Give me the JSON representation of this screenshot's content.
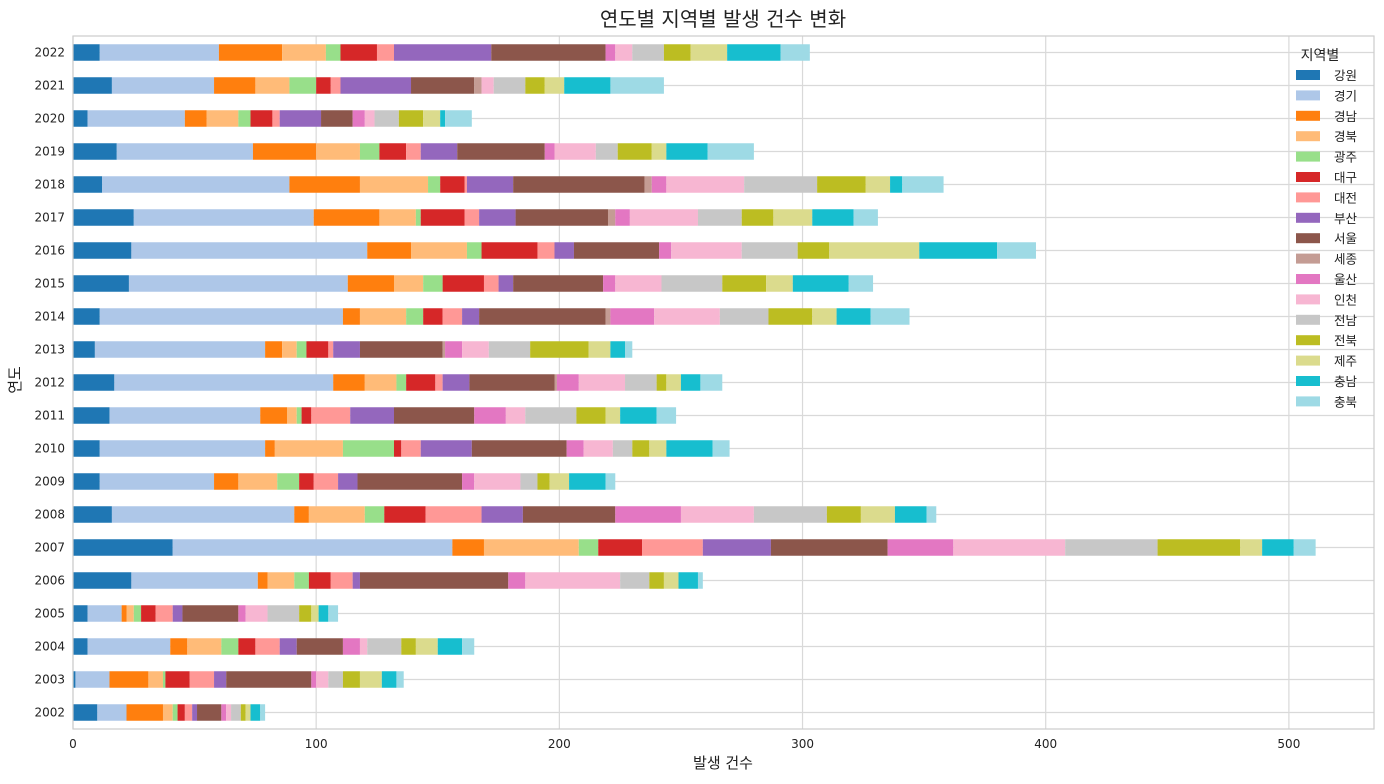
{
  "chart_data": {
    "type": "bar",
    "orientation": "horizontal",
    "stacked": true,
    "title": "연도별 지역별 발생 건수 변화",
    "xlabel": "발생 건수",
    "ylabel": "연도",
    "xlim": [
      0,
      535
    ],
    "xticks": [
      0,
      100,
      200,
      300,
      400,
      500
    ],
    "grid": true,
    "legend_title": "지역별",
    "legend_position": "top-right",
    "categories": [
      "2002",
      "2003",
      "2004",
      "2005",
      "2006",
      "2007",
      "2008",
      "2009",
      "2010",
      "2011",
      "2012",
      "2013",
      "2014",
      "2015",
      "2016",
      "2017",
      "2018",
      "2019",
      "2020",
      "2021",
      "2022"
    ],
    "series": [
      {
        "name": "강원",
        "color": "#1f77b4",
        "values": [
          10,
          1,
          6,
          6,
          24,
          41,
          16,
          11,
          11,
          15,
          17,
          9,
          11,
          23,
          24,
          25,
          12,
          18,
          6,
          16,
          11
        ]
      },
      {
        "name": "경기",
        "color": "#aec7e8",
        "values": [
          12,
          14,
          34,
          14,
          52,
          115,
          75,
          47,
          68,
          62,
          90,
          70,
          100,
          90,
          97,
          74,
          77,
          56,
          40,
          42,
          49
        ]
      },
      {
        "name": "경남",
        "color": "#ff7f0e",
        "values": [
          15,
          16,
          7,
          2,
          4,
          13,
          6,
          10,
          4,
          11,
          13,
          7,
          7,
          19,
          18,
          27,
          29,
          26,
          9,
          17,
          26
        ]
      },
      {
        "name": "경북",
        "color": "#ffbb78",
        "values": [
          4,
          6,
          14,
          3,
          11,
          39,
          23,
          16,
          28,
          4,
          13,
          6,
          19,
          12,
          23,
          15,
          28,
          18,
          13,
          14,
          18
        ]
      },
      {
        "name": "광주",
        "color": "#98df8a",
        "values": [
          2,
          1,
          7,
          3,
          6,
          8,
          8,
          9,
          21,
          2,
          4,
          4,
          7,
          8,
          6,
          2,
          5,
          8,
          5,
          11,
          6
        ]
      },
      {
        "name": "대구",
        "color": "#d62728",
        "values": [
          3,
          10,
          7,
          6,
          9,
          18,
          17,
          6,
          3,
          4,
          12,
          9,
          8,
          17,
          23,
          18,
          10,
          11,
          9,
          6,
          15
        ]
      },
      {
        "name": "대전",
        "color": "#ff9896",
        "values": [
          3,
          10,
          10,
          7,
          9,
          25,
          23,
          10,
          8,
          16,
          3,
          2,
          8,
          6,
          7,
          6,
          1,
          6,
          3,
          4,
          7
        ]
      },
      {
        "name": "부산",
        "color": "#9467bd",
        "values": [
          2,
          5,
          7,
          4,
          3,
          28,
          17,
          8,
          21,
          18,
          11,
          11,
          7,
          6,
          8,
          15,
          19,
          15,
          17,
          29,
          40
        ]
      },
      {
        "name": "서울",
        "color": "#8c564b",
        "values": [
          10,
          35,
          19,
          23,
          61,
          48,
          38,
          43,
          39,
          33,
          35,
          34,
          52,
          37,
          35,
          38,
          54,
          36,
          13,
          26,
          47
        ]
      },
      {
        "name": "세종",
        "color": "#c49c94",
        "values": [
          0,
          0,
          0,
          0,
          0,
          0,
          0,
          0,
          0,
          0,
          1,
          1,
          2,
          0,
          0,
          3,
          3,
          0,
          0,
          3,
          0
        ]
      },
      {
        "name": "울산",
        "color": "#e377c2",
        "values": [
          2,
          2,
          7,
          3,
          7,
          27,
          27,
          5,
          7,
          13,
          9,
          7,
          18,
          5,
          5,
          6,
          6,
          4,
          5,
          0,
          4
        ]
      },
      {
        "name": "인천",
        "color": "#f7b6d2",
        "values": [
          2,
          5,
          3,
          9,
          39,
          46,
          30,
          19,
          12,
          8,
          19,
          11,
          27,
          19,
          29,
          28,
          32,
          17,
          4,
          5,
          7
        ]
      },
      {
        "name": "전남",
        "color": "#c7c7c7",
        "values": [
          4,
          6,
          14,
          13,
          12,
          38,
          30,
          7,
          8,
          21,
          13,
          17,
          20,
          25,
          23,
          18,
          30,
          9,
          10,
          13,
          13
        ]
      },
      {
        "name": "전북",
        "color": "#bcbd22",
        "values": [
          2,
          7,
          6,
          5,
          6,
          34,
          14,
          5,
          7,
          12,
          4,
          24,
          18,
          18,
          13,
          13,
          20,
          14,
          10,
          8,
          11
        ]
      },
      {
        "name": "제주",
        "color": "#dbdb8d",
        "values": [
          2,
          9,
          9,
          3,
          6,
          9,
          14,
          8,
          7,
          6,
          6,
          9,
          10,
          11,
          37,
          16,
          10,
          6,
          7,
          8,
          15
        ]
      },
      {
        "name": "충남",
        "color": "#17becf",
        "values": [
          4,
          6,
          10,
          4,
          8,
          13,
          13,
          15,
          19,
          15,
          8,
          6,
          14,
          23,
          32,
          17,
          5,
          17,
          2,
          19,
          22
        ]
      },
      {
        "name": "충북",
        "color": "#9edae5",
        "values": [
          2,
          3,
          5,
          4,
          2,
          9,
          4,
          4,
          7,
          8,
          9,
          3,
          16,
          10,
          16,
          10,
          17,
          19,
          11,
          22,
          12
        ]
      }
    ]
  }
}
